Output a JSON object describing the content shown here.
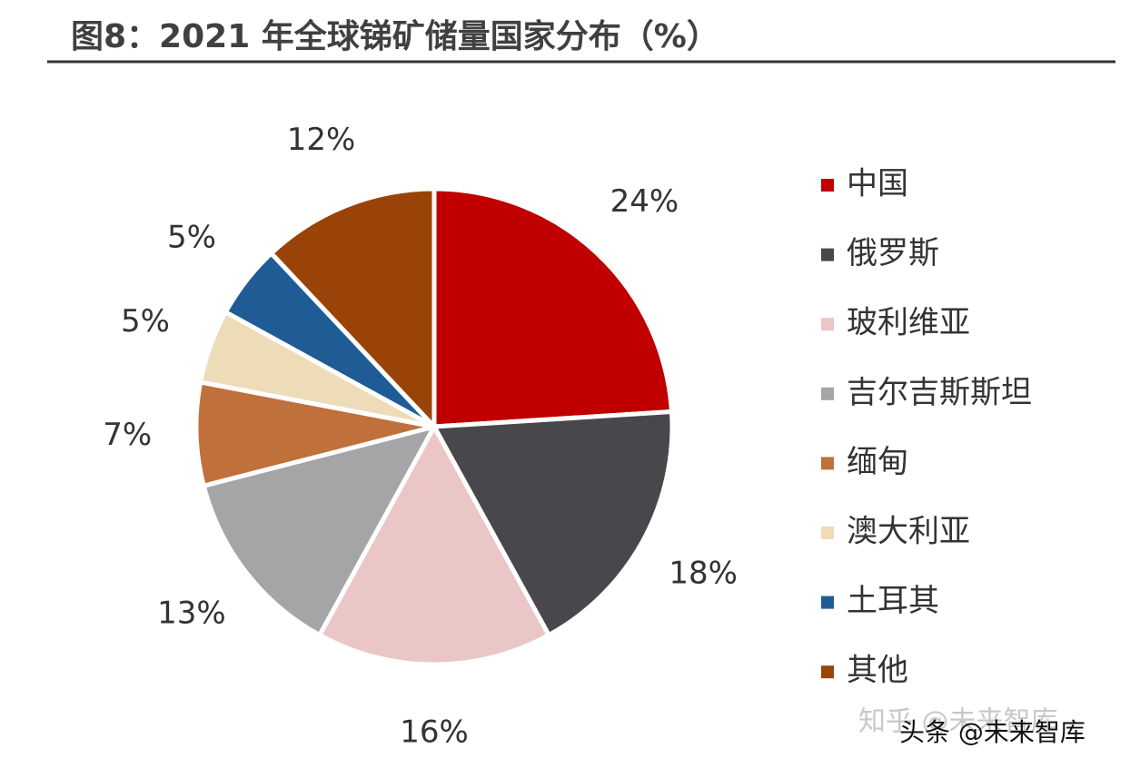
{
  "chart_data": {
    "type": "pie",
    "title": "图8：2021 年全球锑矿储量国家分布（%）",
    "categories": [
      "中国",
      "俄罗斯",
      "玻利维亚",
      "吉尔吉斯斯坦",
      "缅甸",
      "澳大利亚",
      "土耳其",
      "其他"
    ],
    "values": [
      24,
      18,
      16,
      13,
      7,
      5,
      5,
      12
    ],
    "value_labels": [
      "24%",
      "18%",
      "16%",
      "13%",
      "7%",
      "5%",
      "5%",
      "12%"
    ],
    "colors": [
      "#c00000",
      "#48484c",
      "#ebc6c6",
      "#a5a5a8",
      "#c0703a",
      "#eedcb9",
      "#1f5c96",
      "#9a4308"
    ],
    "legend": "right",
    "watermarks": [
      "知乎 @未来智库",
      "头条 @未来智库"
    ]
  }
}
